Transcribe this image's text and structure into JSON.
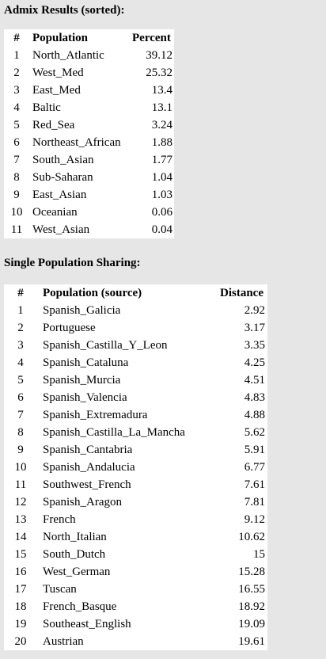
{
  "admix": {
    "title": "Admix Results (sorted):",
    "headers": {
      "num": "#",
      "population": "Population",
      "value": "Percent"
    },
    "rows": [
      {
        "num": "1",
        "population": "North_Atlantic",
        "value": "39.12"
      },
      {
        "num": "2",
        "population": "West_Med",
        "value": "25.32"
      },
      {
        "num": "3",
        "population": "East_Med",
        "value": "13.4"
      },
      {
        "num": "4",
        "population": "Baltic",
        "value": "13.1"
      },
      {
        "num": "5",
        "population": "Red_Sea",
        "value": "3.24"
      },
      {
        "num": "6",
        "population": "Northeast_African",
        "value": "1.88"
      },
      {
        "num": "7",
        "population": "South_Asian",
        "value": "1.77"
      },
      {
        "num": "8",
        "population": "Sub-Saharan",
        "value": "1.04"
      },
      {
        "num": "9",
        "population": "East_Asian",
        "value": "1.03"
      },
      {
        "num": "10",
        "population": "Oceanian",
        "value": "0.06"
      },
      {
        "num": "11",
        "population": "West_Asian",
        "value": "0.04"
      }
    ]
  },
  "sharing": {
    "title": "Single Population Sharing:",
    "headers": {
      "num": "#",
      "population": "Population (source)",
      "value": "Distance"
    },
    "rows": [
      {
        "num": "1",
        "population": "Spanish_Galicia",
        "value": "2.92"
      },
      {
        "num": "2",
        "population": "Portuguese",
        "value": "3.17"
      },
      {
        "num": "3",
        "population": "Spanish_Castilla_Y_Leon",
        "value": "3.35"
      },
      {
        "num": "4",
        "population": "Spanish_Cataluna",
        "value": "4.25"
      },
      {
        "num": "5",
        "population": "Spanish_Murcia",
        "value": "4.51"
      },
      {
        "num": "6",
        "population": "Spanish_Valencia",
        "value": "4.83"
      },
      {
        "num": "7",
        "population": "Spanish_Extremadura",
        "value": "4.88"
      },
      {
        "num": "8",
        "population": "Spanish_Castilla_La_Mancha",
        "value": "5.62"
      },
      {
        "num": "9",
        "population": "Spanish_Cantabria",
        "value": "5.91"
      },
      {
        "num": "10",
        "population": "Spanish_Andalucia",
        "value": "6.77"
      },
      {
        "num": "11",
        "population": "Southwest_French",
        "value": "7.61"
      },
      {
        "num": "12",
        "population": "Spanish_Aragon",
        "value": "7.81"
      },
      {
        "num": "13",
        "population": "French",
        "value": "9.12"
      },
      {
        "num": "14",
        "population": "North_Italian",
        "value": "10.62"
      },
      {
        "num": "15",
        "population": "South_Dutch",
        "value": "15"
      },
      {
        "num": "16",
        "population": "West_German",
        "value": "15.28"
      },
      {
        "num": "17",
        "population": "Tuscan",
        "value": "16.55"
      },
      {
        "num": "18",
        "population": "French_Basque",
        "value": "18.92"
      },
      {
        "num": "19",
        "population": "Southeast_English",
        "value": "19.09"
      },
      {
        "num": "20",
        "population": "Austrian",
        "value": "19.61"
      }
    ]
  }
}
